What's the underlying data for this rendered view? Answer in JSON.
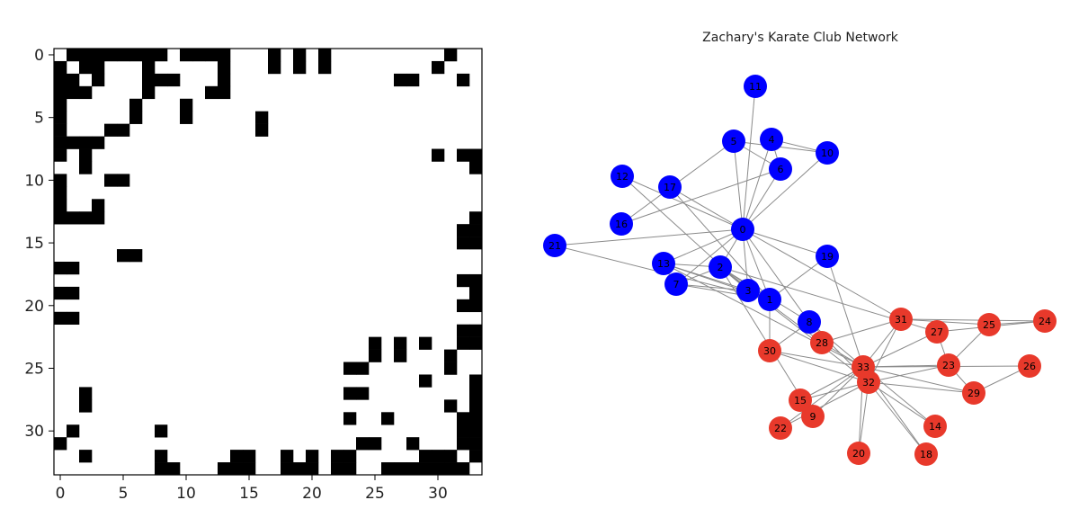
{
  "chart_data": [
    {
      "type": "heatmap",
      "title": "",
      "xlabel": "",
      "ylabel": "",
      "matrix_size": 34,
      "x_ticks": [
        0,
        5,
        10,
        15,
        20,
        25,
        30
      ],
      "y_ticks": [
        0,
        5,
        10,
        15,
        20,
        25,
        30
      ],
      "colors": {
        "filled": "#000000",
        "empty": "#ffffff"
      },
      "adjacency": [
        [
          0,
          1
        ],
        [
          0,
          2
        ],
        [
          0,
          3
        ],
        [
          0,
          4
        ],
        [
          0,
          5
        ],
        [
          0,
          6
        ],
        [
          0,
          7
        ],
        [
          0,
          8
        ],
        [
          0,
          10
        ],
        [
          0,
          11
        ],
        [
          0,
          12
        ],
        [
          0,
          13
        ],
        [
          0,
          17
        ],
        [
          0,
          19
        ],
        [
          0,
          21
        ],
        [
          0,
          31
        ],
        [
          1,
          2
        ],
        [
          1,
          3
        ],
        [
          1,
          7
        ],
        [
          1,
          13
        ],
        [
          1,
          17
        ],
        [
          1,
          19
        ],
        [
          1,
          21
        ],
        [
          1,
          30
        ],
        [
          2,
          3
        ],
        [
          2,
          7
        ],
        [
          2,
          8
        ],
        [
          2,
          9
        ],
        [
          2,
          13
        ],
        [
          2,
          27
        ],
        [
          2,
          28
        ],
        [
          2,
          32
        ],
        [
          3,
          7
        ],
        [
          3,
          12
        ],
        [
          3,
          13
        ],
        [
          4,
          6
        ],
        [
          4,
          10
        ],
        [
          5,
          6
        ],
        [
          5,
          10
        ],
        [
          5,
          16
        ],
        [
          6,
          16
        ],
        [
          8,
          30
        ],
        [
          8,
          32
        ],
        [
          8,
          33
        ],
        [
          9,
          33
        ],
        [
          13,
          33
        ],
        [
          14,
          32
        ],
        [
          14,
          33
        ],
        [
          15,
          32
        ],
        [
          15,
          33
        ],
        [
          18,
          32
        ],
        [
          18,
          33
        ],
        [
          19,
          33
        ],
        [
          20,
          32
        ],
        [
          20,
          33
        ],
        [
          22,
          32
        ],
        [
          22,
          33
        ],
        [
          23,
          25
        ],
        [
          23,
          27
        ],
        [
          23,
          29
        ],
        [
          23,
          32
        ],
        [
          23,
          33
        ],
        [
          24,
          25
        ],
        [
          24,
          27
        ],
        [
          24,
          31
        ],
        [
          25,
          31
        ],
        [
          26,
          29
        ],
        [
          26,
          33
        ],
        [
          27,
          33
        ],
        [
          28,
          31
        ],
        [
          28,
          33
        ],
        [
          29,
          32
        ],
        [
          29,
          33
        ],
        [
          30,
          32
        ],
        [
          30,
          33
        ],
        [
          31,
          32
        ],
        [
          31,
          33
        ],
        [
          32,
          33
        ]
      ]
    },
    {
      "type": "network",
      "title": "Zachary's Karate Club Network",
      "colors": {
        "group_a": "#0000ff",
        "group_b": "#e8392b",
        "edge": "#8a8a8a"
      },
      "nodes": [
        {
          "id": "0",
          "group": "a"
        },
        {
          "id": "1",
          "group": "a"
        },
        {
          "id": "2",
          "group": "a"
        },
        {
          "id": "3",
          "group": "a"
        },
        {
          "id": "4",
          "group": "a"
        },
        {
          "id": "5",
          "group": "a"
        },
        {
          "id": "6",
          "group": "a"
        },
        {
          "id": "7",
          "group": "a"
        },
        {
          "id": "8",
          "group": "a"
        },
        {
          "id": "9",
          "group": "b"
        },
        {
          "id": "10",
          "group": "a"
        },
        {
          "id": "11",
          "group": "a"
        },
        {
          "id": "12",
          "group": "a"
        },
        {
          "id": "13",
          "group": "a"
        },
        {
          "id": "14",
          "group": "b"
        },
        {
          "id": "15",
          "group": "b"
        },
        {
          "id": "16",
          "group": "a"
        },
        {
          "id": "17",
          "group": "a"
        },
        {
          "id": "18",
          "group": "b"
        },
        {
          "id": "19",
          "group": "a"
        },
        {
          "id": "20",
          "group": "b"
        },
        {
          "id": "21",
          "group": "a"
        },
        {
          "id": "22",
          "group": "b"
        },
        {
          "id": "23",
          "group": "b"
        },
        {
          "id": "24",
          "group": "b"
        },
        {
          "id": "25",
          "group": "b"
        },
        {
          "id": "26",
          "group": "b"
        },
        {
          "id": "27",
          "group": "b"
        },
        {
          "id": "28",
          "group": "b"
        },
        {
          "id": "29",
          "group": "b"
        },
        {
          "id": "30",
          "group": "b"
        },
        {
          "id": "31",
          "group": "b"
        },
        {
          "id": "32",
          "group": "b"
        },
        {
          "id": "33",
          "group": "b"
        }
      ]
    }
  ]
}
